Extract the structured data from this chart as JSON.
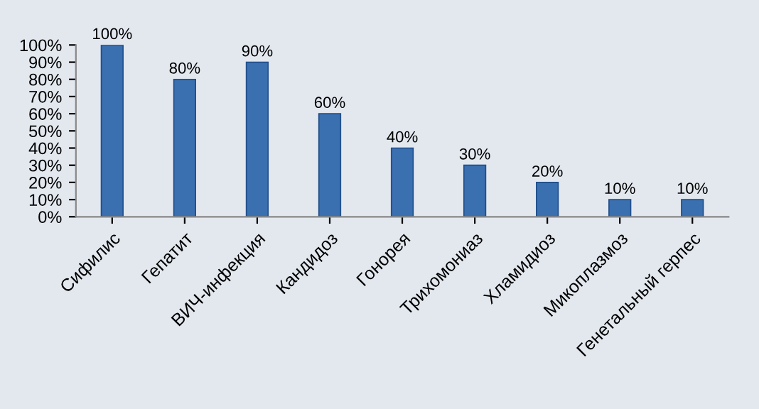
{
  "chart_data": {
    "type": "bar",
    "categories": [
      "Сифилис",
      "Гепатит",
      "ВИЧ-инфекция",
      "Кандидоз",
      "Гонорея",
      "Трихомониаз",
      "Хламидиоз",
      "Микоплазмоз",
      "Генетальный герпес"
    ],
    "values": [
      100,
      80,
      90,
      60,
      40,
      30,
      20,
      10,
      10
    ],
    "value_labels": [
      "100%",
      "80%",
      "90%",
      "60%",
      "40%",
      "30%",
      "20%",
      "10%",
      "10%"
    ],
    "color": "#3a6fb0",
    "ylim": [
      0,
      100
    ],
    "yticks": [
      {
        "value": 0,
        "label": "0%"
      },
      {
        "value": 10,
        "label": "10%"
      },
      {
        "value": 20,
        "label": "20%"
      },
      {
        "value": 30,
        "label": "30%"
      },
      {
        "value": 40,
        "label": "40%"
      },
      {
        "value": 50,
        "label": "50%"
      },
      {
        "value": 60,
        "label": "60%"
      },
      {
        "value": 70,
        "label": "70%"
      },
      {
        "value": 80,
        "label": "80%"
      },
      {
        "value": 90,
        "label": "90%"
      },
      {
        "value": 100,
        "label": "100%"
      }
    ],
    "grid": false
  }
}
